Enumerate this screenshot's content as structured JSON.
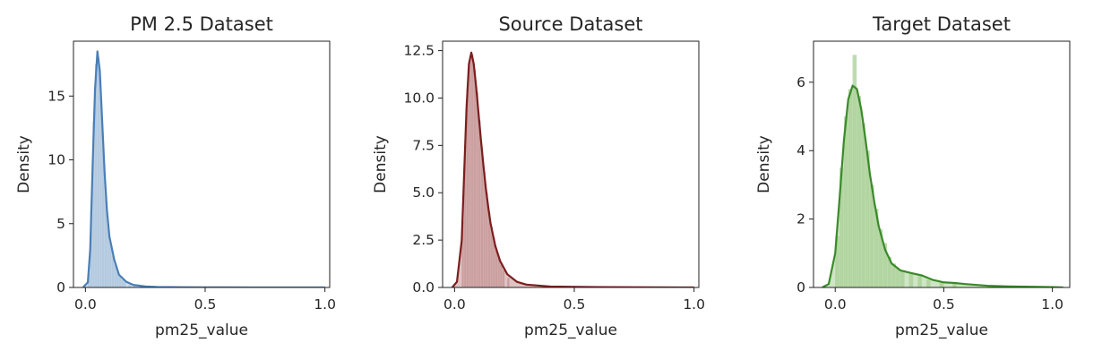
{
  "chart_data": [
    {
      "type": "area",
      "title": "PM 2.5 Dataset",
      "xlabel": "pm25_value",
      "ylabel": "Density",
      "xlim": [
        -0.05,
        1.02
      ],
      "ylim": [
        0,
        19.3
      ],
      "xticks": [
        0.0,
        0.5,
        1.0
      ],
      "xtick_labels": [
        "0.0",
        "0.5",
        "1.0"
      ],
      "yticks": [
        0,
        5,
        10,
        15
      ],
      "ytick_labels": [
        "0",
        "5",
        "10",
        "15"
      ],
      "color": "#4a7fb5",
      "fill_color": "#a9c3dc",
      "grid": false,
      "series": [
        {
          "kde": [
            [
              -0.01,
              0
            ],
            [
              0.01,
              0.4
            ],
            [
              0.02,
              3.0
            ],
            [
              0.03,
              9.5
            ],
            [
              0.04,
              15.5
            ],
            [
              0.05,
              18.5
            ],
            [
              0.06,
              17.0
            ],
            [
              0.07,
              13.0
            ],
            [
              0.08,
              9.0
            ],
            [
              0.09,
              6.0
            ],
            [
              0.1,
              4.0
            ],
            [
              0.12,
              2.2
            ],
            [
              0.14,
              1.0
            ],
            [
              0.17,
              0.45
            ],
            [
              0.2,
              0.2
            ],
            [
              0.25,
              0.08
            ],
            [
              0.3,
              0.04
            ],
            [
              0.4,
              0.02
            ],
            [
              0.5,
              0.01
            ],
            [
              0.7,
              0.005
            ],
            [
              1.0,
              0
            ]
          ],
          "histogram": {
            "bin_width": 0.01,
            "bin_starts": [
              0.01,
              0.02,
              0.03,
              0.04,
              0.05,
              0.06,
              0.07,
              0.08,
              0.09,
              0.1,
              0.11,
              0.12,
              0.13,
              0.14,
              0.15,
              0.16,
              0.18,
              0.2
            ],
            "heights": [
              1.0,
              6.0,
              13.0,
              17.5,
              18.0,
              15.0,
              11.0,
              7.5,
              5.0,
              3.5,
              2.5,
              1.8,
              1.2,
              0.9,
              0.6,
              0.4,
              0.2,
              0.1
            ]
          }
        }
      ]
    },
    {
      "type": "area",
      "title": "Source Dataset",
      "xlabel": "pm25_value",
      "ylabel": "Density",
      "xlim": [
        -0.05,
        1.02
      ],
      "ylim": [
        0,
        13.0
      ],
      "xticks": [
        0.0,
        0.5,
        1.0
      ],
      "xtick_labels": [
        "0.0",
        "0.5",
        "1.0"
      ],
      "yticks": [
        0.0,
        2.5,
        5.0,
        7.5,
        10.0,
        12.5
      ],
      "ytick_labels": [
        "0.0",
        "2.5",
        "5.0",
        "7.5",
        "10.0",
        "12.5"
      ],
      "color": "#7b1e1e",
      "fill_color": "#c49393",
      "grid": false,
      "series": [
        {
          "kde": [
            [
              -0.01,
              0
            ],
            [
              0.01,
              0.3
            ],
            [
              0.03,
              2.5
            ],
            [
              0.04,
              6.0
            ],
            [
              0.05,
              9.5
            ],
            [
              0.06,
              11.8
            ],
            [
              0.07,
              12.4
            ],
            [
              0.08,
              11.8
            ],
            [
              0.09,
              10.6
            ],
            [
              0.1,
              9.2
            ],
            [
              0.11,
              7.8
            ],
            [
              0.12,
              6.5
            ],
            [
              0.13,
              5.3
            ],
            [
              0.14,
              4.3
            ],
            [
              0.15,
              3.4
            ],
            [
              0.17,
              2.2
            ],
            [
              0.19,
              1.4
            ],
            [
              0.22,
              0.7
            ],
            [
              0.26,
              0.3
            ],
            [
              0.3,
              0.15
            ],
            [
              0.4,
              0.05
            ],
            [
              0.6,
              0.02
            ],
            [
              1.0,
              0
            ]
          ],
          "histogram": {
            "bin_width": 0.01,
            "bin_starts": [
              0.03,
              0.04,
              0.05,
              0.06,
              0.07,
              0.08,
              0.09,
              0.1,
              0.11,
              0.12,
              0.13,
              0.14,
              0.15,
              0.16,
              0.17,
              0.18,
              0.19,
              0.2,
              0.22
            ],
            "heights": [
              3.5,
              7.5,
              10.5,
              12.0,
              12.3,
              11.5,
              10.3,
              8.8,
              7.4,
              6.1,
              5.0,
              4.0,
              3.2,
              2.6,
              2.0,
              1.6,
              1.2,
              0.9,
              0.5
            ]
          }
        }
      ]
    },
    {
      "type": "area",
      "title": "Target Dataset",
      "xlabel": "pm25_value",
      "ylabel": "Density",
      "xlim": [
        -0.1,
        1.08
      ],
      "ylim": [
        0,
        7.2
      ],
      "xticks": [
        0.0,
        0.5,
        1.0
      ],
      "xtick_labels": [
        "0.0",
        "0.5",
        "1.0"
      ],
      "yticks": [
        0,
        2,
        4,
        6
      ],
      "ytick_labels": [
        "0",
        "2",
        "4",
        "6"
      ],
      "color": "#3a8a2a",
      "fill_color": "#a8cf95",
      "grid": false,
      "series": [
        {
          "kde": [
            [
              -0.06,
              0
            ],
            [
              -0.03,
              0.1
            ],
            [
              0.0,
              1.0
            ],
            [
              0.02,
              2.6
            ],
            [
              0.04,
              4.3
            ],
            [
              0.06,
              5.5
            ],
            [
              0.08,
              5.9
            ],
            [
              0.1,
              5.8
            ],
            [
              0.12,
              5.2
            ],
            [
              0.14,
              4.3
            ],
            [
              0.16,
              3.3
            ],
            [
              0.18,
              2.5
            ],
            [
              0.2,
              1.8
            ],
            [
              0.23,
              1.1
            ],
            [
              0.26,
              0.7
            ],
            [
              0.3,
              0.5
            ],
            [
              0.35,
              0.42
            ],
            [
              0.4,
              0.35
            ],
            [
              0.45,
              0.22
            ],
            [
              0.5,
              0.15
            ],
            [
              0.55,
              0.13
            ],
            [
              0.6,
              0.1
            ],
            [
              0.7,
              0.05
            ],
            [
              0.8,
              0.03
            ],
            [
              1.0,
              0.01
            ],
            [
              1.05,
              0
            ]
          ],
          "histogram": {
            "bin_width": 0.02,
            "bin_starts": [
              0.0,
              0.02,
              0.04,
              0.06,
              0.08,
              0.1,
              0.12,
              0.14,
              0.16,
              0.18,
              0.2,
              0.22,
              0.24,
              0.26,
              0.28,
              0.3,
              0.34,
              0.38,
              0.42,
              0.48,
              0.54
            ],
            "heights": [
              1.5,
              3.5,
              5.0,
              5.8,
              6.8,
              5.6,
              4.8,
              4.0,
              3.0,
              2.3,
              1.7,
              1.3,
              0.9,
              0.7,
              0.55,
              0.5,
              0.4,
              0.33,
              0.22,
              0.15,
              0.14
            ]
          }
        }
      ]
    }
  ]
}
